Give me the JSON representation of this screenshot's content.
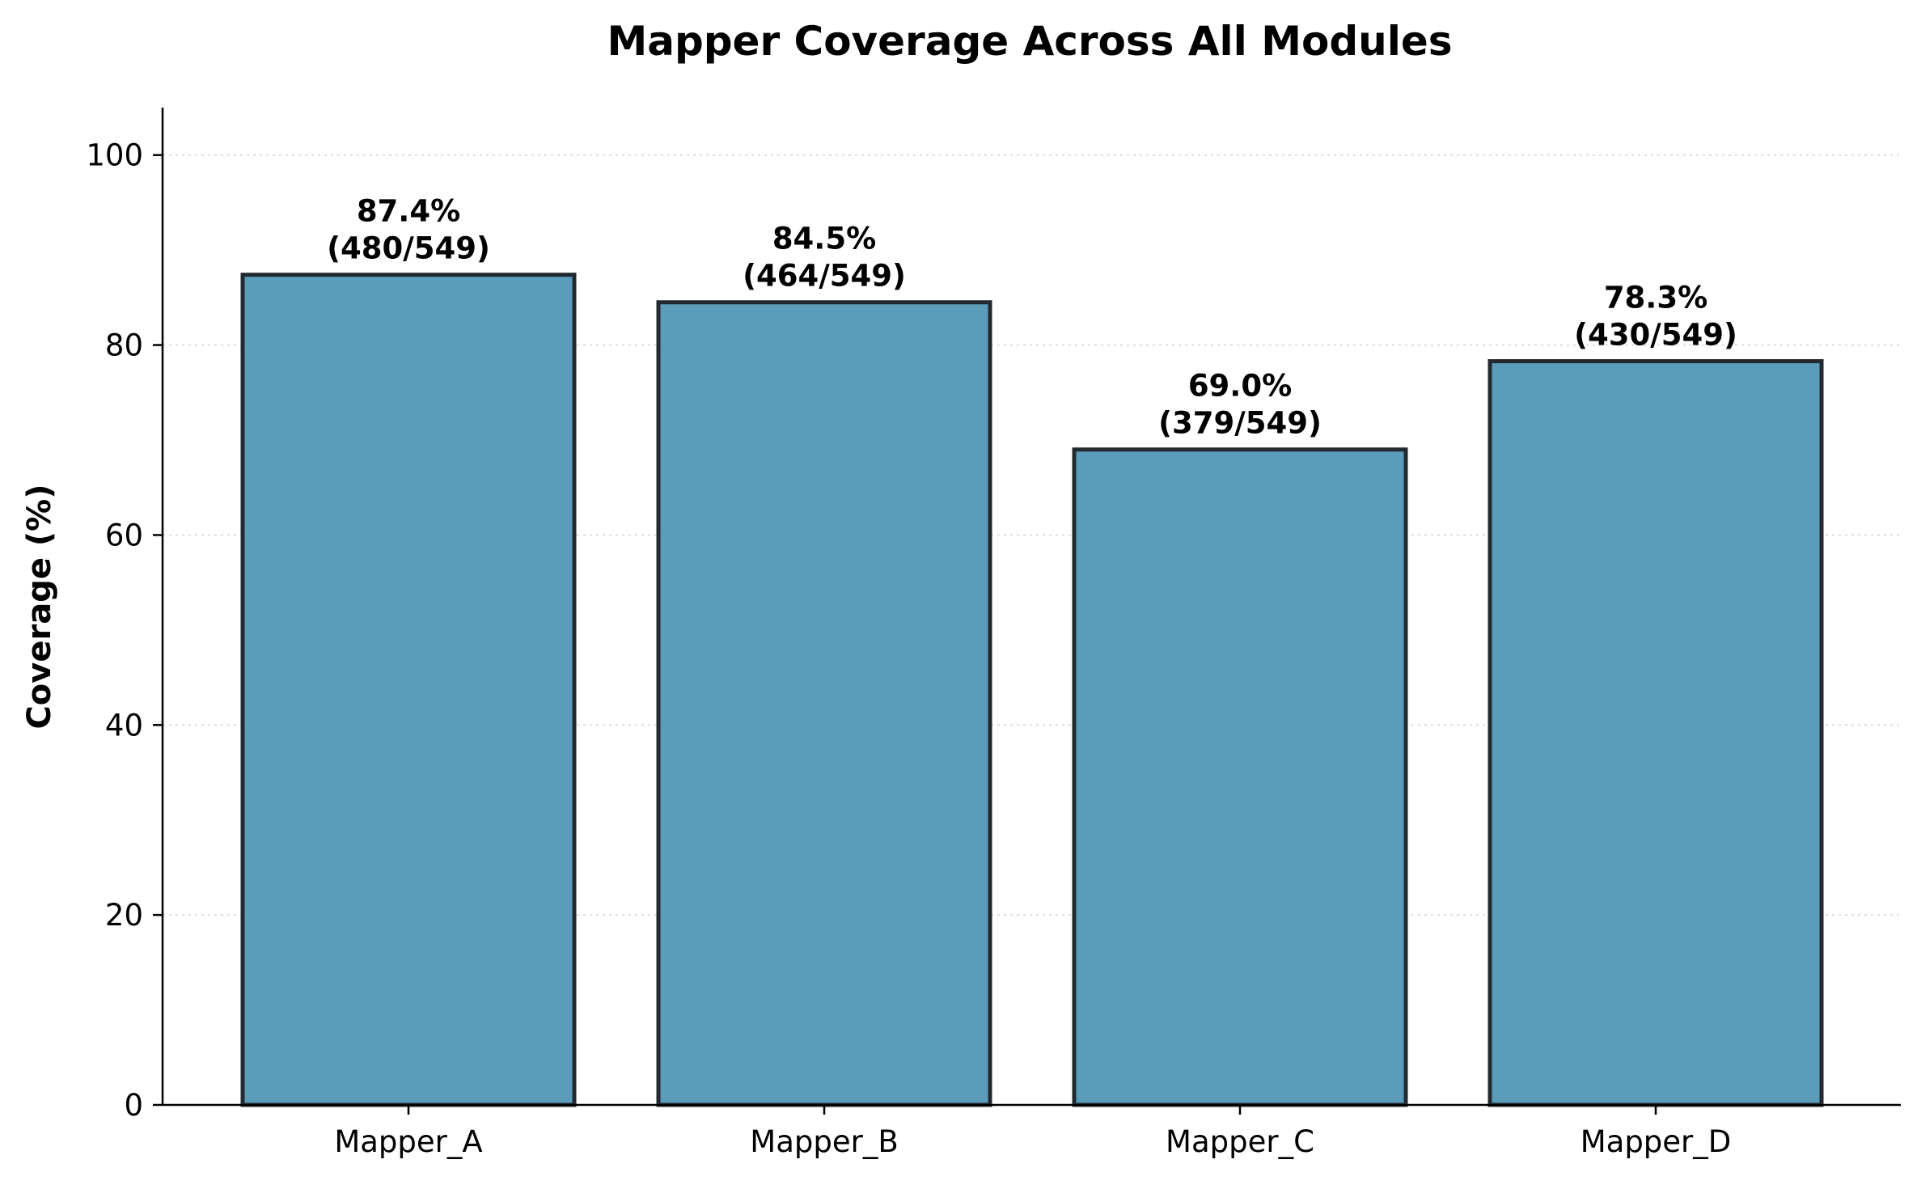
{
  "chart_data": {
    "type": "bar",
    "title": "Mapper Coverage Across All Modules",
    "xlabel": "",
    "ylabel": "Coverage (%)",
    "categories": [
      "Mapper_A",
      "Mapper_B",
      "Mapper_C",
      "Mapper_D"
    ],
    "values": [
      87.4,
      84.5,
      69.0,
      78.3
    ],
    "data_labels": [
      [
        "87.4%",
        "(480/549)"
      ],
      [
        "84.5%",
        "(464/549)"
      ],
      [
        "69.0%",
        "(379/549)"
      ],
      [
        "78.3%",
        "(430/549)"
      ]
    ],
    "yticks": [
      0,
      20,
      40,
      60,
      80,
      100
    ],
    "ylim": [
      0,
      105
    ],
    "grid": "horizontal dotted",
    "legend": "none",
    "colors": {
      "bar_fill": "#5b9cbb",
      "bar_edge": "#222a30",
      "grid": "#dddddd",
      "axis": "#000000"
    }
  }
}
